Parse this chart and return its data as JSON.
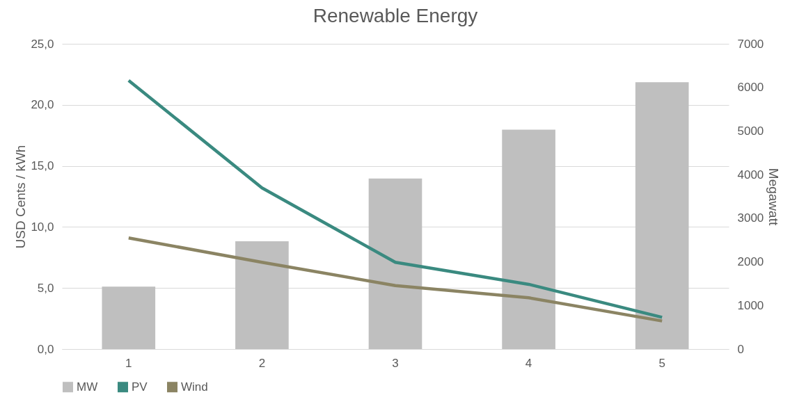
{
  "chart_data": {
    "type": "bar",
    "title": "Renewable Energy",
    "categories": [
      "1",
      "2",
      "3",
      "4",
      "5"
    ],
    "ylabel": "USD Cents / kWh",
    "y2label": "Megawatt",
    "series": [
      {
        "name": "MW",
        "axis": "y2",
        "color": "#bfbfbf",
        "values": [
          1430,
          2470,
          3910,
          5030,
          6120
        ]
      },
      {
        "name": "PV",
        "type": "line",
        "color": "#3a8a80",
        "values": [
          22.0,
          13.2,
          7.1,
          5.3,
          2.6
        ]
      },
      {
        "name": "Wind",
        "type": "line",
        "color": "#8b8463",
        "values": [
          9.1,
          7.1,
          5.2,
          4.2,
          2.3
        ]
      }
    ],
    "ylim": [
      0,
      25
    ],
    "yticks": [
      {
        "value": 0,
        "label": "0,0"
      },
      {
        "value": 5,
        "label": "5,0"
      },
      {
        "value": 10,
        "label": "10,0"
      },
      {
        "value": 15,
        "label": "15,0"
      },
      {
        "value": 20,
        "label": "20,0"
      },
      {
        "value": 25,
        "label": "25,0"
      }
    ],
    "y2lim": [
      0,
      7000
    ],
    "y2ticks": [
      0,
      1000,
      2000,
      3000,
      4000,
      5000,
      6000,
      7000
    ],
    "grid": "y",
    "legend": "bottom",
    "marker": "none",
    "line_style": "solid"
  }
}
